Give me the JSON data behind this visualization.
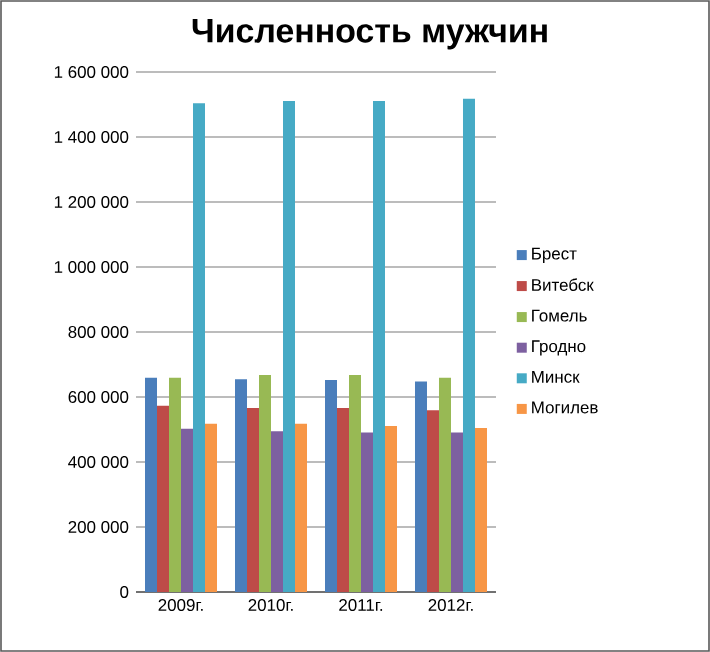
{
  "chart_data": {
    "type": "bar",
    "title": "Численность мужчин",
    "categories": [
      "2009г.",
      "2010г.",
      "2011г.",
      "2012г."
    ],
    "series": [
      {
        "name": "Брест",
        "color": "#4a7ebb",
        "values": [
          659000,
          655000,
          652000,
          648000
        ]
      },
      {
        "name": "Витебск",
        "color": "#be4b48",
        "values": [
          573000,
          566000,
          566000,
          559000
        ]
      },
      {
        "name": "Гомель",
        "color": "#98b954",
        "values": [
          659000,
          668000,
          668000,
          659000
        ]
      },
      {
        "name": "Гродно",
        "color": "#7d60a0",
        "values": [
          502000,
          495000,
          491000,
          491000
        ]
      },
      {
        "name": "Минск",
        "color": "#46aac5",
        "values": [
          1504000,
          1511000,
          1511000,
          1518000
        ]
      },
      {
        "name": "Могилев",
        "color": "#f79646",
        "values": [
          518000,
          518000,
          511000,
          505000
        ]
      }
    ],
    "ylim": [
      0,
      1600000
    ],
    "yticks": [
      {
        "value": 0,
        "label": "0"
      },
      {
        "value": 200000,
        "label": "200 000"
      },
      {
        "value": 400000,
        "label": "400 000"
      },
      {
        "value": 600000,
        "label": "600 000"
      },
      {
        "value": 800000,
        "label": "800 000"
      },
      {
        "value": 1000000,
        "label": "1 000 000"
      },
      {
        "value": 1200000,
        "label": "1 200 000"
      },
      {
        "value": 1400000,
        "label": "1 400 000"
      },
      {
        "value": 1600000,
        "label": "1 600 000"
      }
    ],
    "grid": "y",
    "legend": "right"
  }
}
